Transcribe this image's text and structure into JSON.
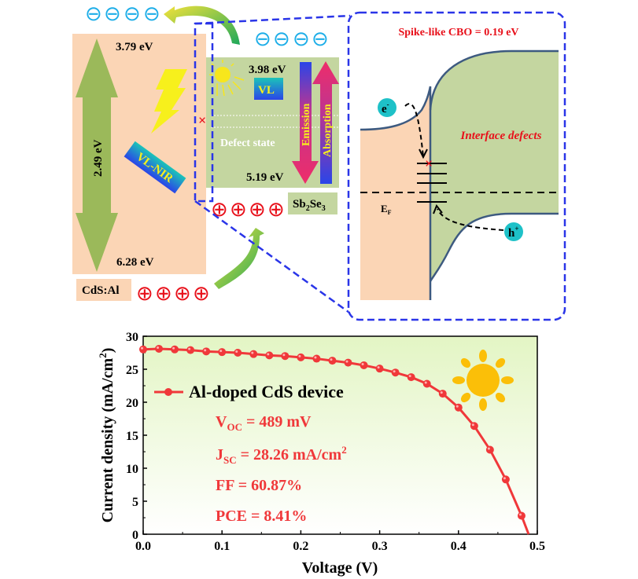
{
  "band_diagram": {
    "cds": {
      "label": "CdS:Al",
      "cb_energy": "3.79 eV",
      "vb_energy": "6.28 eV",
      "bandgap": "2.49 eV",
      "excitation_label": "VL-NIR",
      "color": "#fbd5b5"
    },
    "sb2se3": {
      "label_main": "Sb",
      "label_sub1": "2",
      "label_mid": "Se",
      "label_sub2": "3",
      "cb_energy": "3.98 eV",
      "vb_energy": "5.19 eV",
      "excitation_label": "VL",
      "defect_label": "Defect state",
      "emission_label": "Emission",
      "absorption_label": "Absorption",
      "color": "#c4d6a0"
    },
    "electron_symbol": "⊖",
    "hole_symbol": "⊕"
  },
  "interface_zoom": {
    "title": "Spike-like CBO = 0.19 eV",
    "defects_label": "Interface defects",
    "electron_label": "e",
    "electron_sup": "-",
    "hole_label": "h",
    "hole_sup": "+",
    "fermi_label": "E",
    "fermi_sub": "F"
  },
  "chart_data": {
    "type": "line",
    "xlabel": "Voltage (V)",
    "ylabel": "Current density (mA/cm",
    "ylabel_sup": "2",
    "ylabel_end": ")",
    "xlim": [
      0,
      0.5
    ],
    "ylim": [
      0,
      30
    ],
    "xticks": [
      "0.0",
      "0.1",
      "0.2",
      "0.3",
      "0.4",
      "0.5"
    ],
    "yticks": [
      "0",
      "5",
      "10",
      "15",
      "20",
      "25",
      "30"
    ],
    "series": [
      {
        "name": "Al-doped CdS device",
        "color": "#f0383a",
        "x": [
          0,
          0.02,
          0.04,
          0.06,
          0.08,
          0.1,
          0.12,
          0.14,
          0.16,
          0.18,
          0.2,
          0.22,
          0.24,
          0.26,
          0.28,
          0.3,
          0.32,
          0.34,
          0.36,
          0.38,
          0.4,
          0.42,
          0.44,
          0.46,
          0.48,
          0.489
        ],
        "y": [
          28.0,
          28.1,
          28.0,
          27.9,
          27.7,
          27.6,
          27.5,
          27.3,
          27.1,
          27.0,
          26.8,
          26.6,
          26.3,
          26.0,
          25.6,
          25.1,
          24.5,
          23.8,
          22.8,
          21.3,
          19.2,
          16.4,
          12.8,
          8.3,
          2.8,
          0
        ]
      }
    ],
    "legend_position": "top-left",
    "annotations": {
      "voc_main": "V",
      "voc_sub": "OC",
      "voc_value": " = 489 mV",
      "jsc_main": "J",
      "jsc_sub": "SC",
      "jsc_value": " = 28.26 mA/cm",
      "jsc_sup": "2",
      "ff": "FF = 60.87%",
      "pce": "PCE = 8.41%"
    },
    "background_gradient": [
      "#e3f5c4",
      "#ffffff"
    ]
  }
}
